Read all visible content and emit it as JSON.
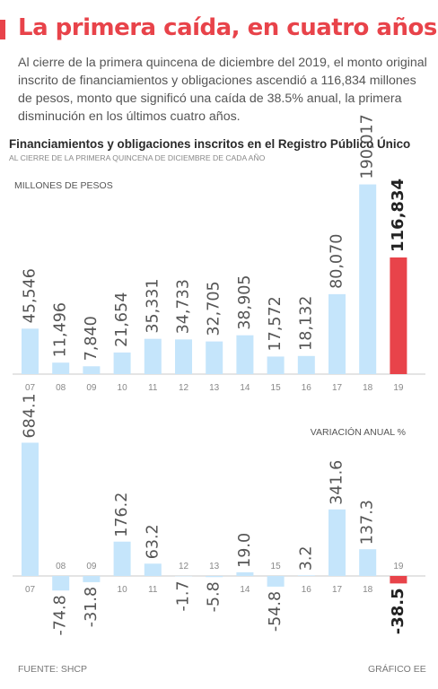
{
  "header": {
    "headline": "La primera caída, en cuatro años",
    "intro": "Al cierre de la primera quincena de diciembre del 2019, el monto original inscrito de financiamientos y obligaciones ascendió a 116,834 millones de pesos, monto que significó una caída de 38.5% anual, la primera disminución en los últimos cuatro años."
  },
  "colors": {
    "accent": "#e8434a",
    "bar": "#c5e5fb",
    "axis": "#c8c8c8",
    "highlight": "#e8434a"
  },
  "chart_data": [
    {
      "type": "bar",
      "title": "Financiamientos y obligaciones inscritos en el Registro Público Único",
      "subtitle": "AL CIERRE DE LA PRIMERA QUINCENA DE DICIEMBRE DE CADA AÑO",
      "ylabel": "MILLONES DE PESOS",
      "categories": [
        "07",
        "08",
        "09",
        "10",
        "11",
        "12",
        "13",
        "14",
        "15",
        "16",
        "17",
        "18",
        "19"
      ],
      "values": [
        45546,
        11496,
        7840,
        21654,
        35331,
        34733,
        32705,
        38905,
        17572,
        18132,
        80070,
        190017,
        116834
      ],
      "value_labels": [
        "45,546",
        "11,496",
        "7,840",
        "21,654",
        "35,331",
        "34,733",
        "32,705",
        "38,905",
        "17,572",
        "18,132",
        "80,070",
        "190,017",
        "116,834"
      ],
      "highlight_index": 12,
      "ylim": [
        0,
        195000
      ],
      "grid": false
    },
    {
      "type": "bar",
      "ylabel": "VARIACIÓN ANUAL %",
      "categories": [
        "07",
        "08",
        "09",
        "10",
        "11",
        "12",
        "13",
        "14",
        "15",
        "16",
        "17",
        "18",
        "19"
      ],
      "values": [
        684.1,
        -74.8,
        -31.8,
        176.2,
        63.2,
        -1.7,
        -5.8,
        19.0,
        -54.8,
        3.2,
        341.6,
        137.3,
        -38.5
      ],
      "value_labels": [
        "684.1",
        "-74.8",
        "-31.8",
        "176.2",
        "63.2",
        "-1.7",
        "-5.8",
        "19.0",
        "-54.8",
        "3.2",
        "341.6",
        "137.3",
        "-38.5"
      ],
      "highlight_index": 12,
      "ylim": [
        -80,
        700
      ],
      "grid": false
    }
  ],
  "footer": {
    "source": "FUENTE: SHCP",
    "credit": "GRÁFICO EE"
  }
}
